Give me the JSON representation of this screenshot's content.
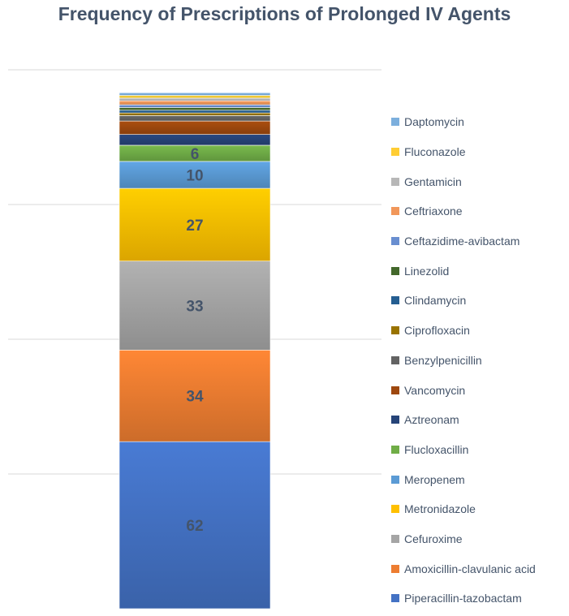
{
  "chart_data": {
    "type": "bar",
    "stacked": true,
    "title": "Frequency of Prescriptions of Prolonged IV Agents",
    "xlabel": "",
    "ylabel": "",
    "ylim": [
      0,
      200
    ],
    "grid": true,
    "legend_position": "right",
    "series": [
      {
        "name": "Piperacillin-tazobactam",
        "value": 62,
        "color": "#4472c4",
        "label": "62"
      },
      {
        "name": "Amoxicillin-clavulanic acid",
        "value": 34,
        "color": "#ed7d31",
        "label": "34"
      },
      {
        "name": "Cefuroxime",
        "value": 33,
        "color": "#a5a5a5",
        "label": "33"
      },
      {
        "name": "Metronidazole",
        "value": 27,
        "color": "#ffc000",
        "label": "27"
      },
      {
        "name": "Meropenem",
        "value": 10,
        "color": "#5b9bd5",
        "label": "10"
      },
      {
        "name": "Flucloxacillin",
        "value": 6,
        "color": "#70ad47",
        "label": "6"
      },
      {
        "name": "Aztreonam",
        "value": 4,
        "color": "#264478",
        "label": ""
      },
      {
        "name": "Vancomycin",
        "value": 5,
        "color": "#9e480e",
        "label": ""
      },
      {
        "name": "Benzylpenicillin",
        "value": 2,
        "color": "#636363",
        "label": ""
      },
      {
        "name": "Ciprofloxacin",
        "value": 1,
        "color": "#997300",
        "label": ""
      },
      {
        "name": "Clindamycin",
        "value": 1,
        "color": "#255e91",
        "label": ""
      },
      {
        "name": "Linezolid",
        "value": 1,
        "color": "#43682b",
        "label": ""
      },
      {
        "name": "Ceftazidime-avibactam",
        "value": 1,
        "color": "#698ed0",
        "label": ""
      },
      {
        "name": "Ceftriaxone",
        "value": 1.5,
        "color": "#f1975a",
        "label": ""
      },
      {
        "name": "Gentamicin",
        "value": 1,
        "color": "#b7b7b7",
        "label": ""
      },
      {
        "name": "Fluconazole",
        "value": 1,
        "color": "#ffcd33",
        "label": ""
      },
      {
        "name": "Daptomycin",
        "value": 1,
        "color": "#7cafdd",
        "label": ""
      }
    ]
  }
}
